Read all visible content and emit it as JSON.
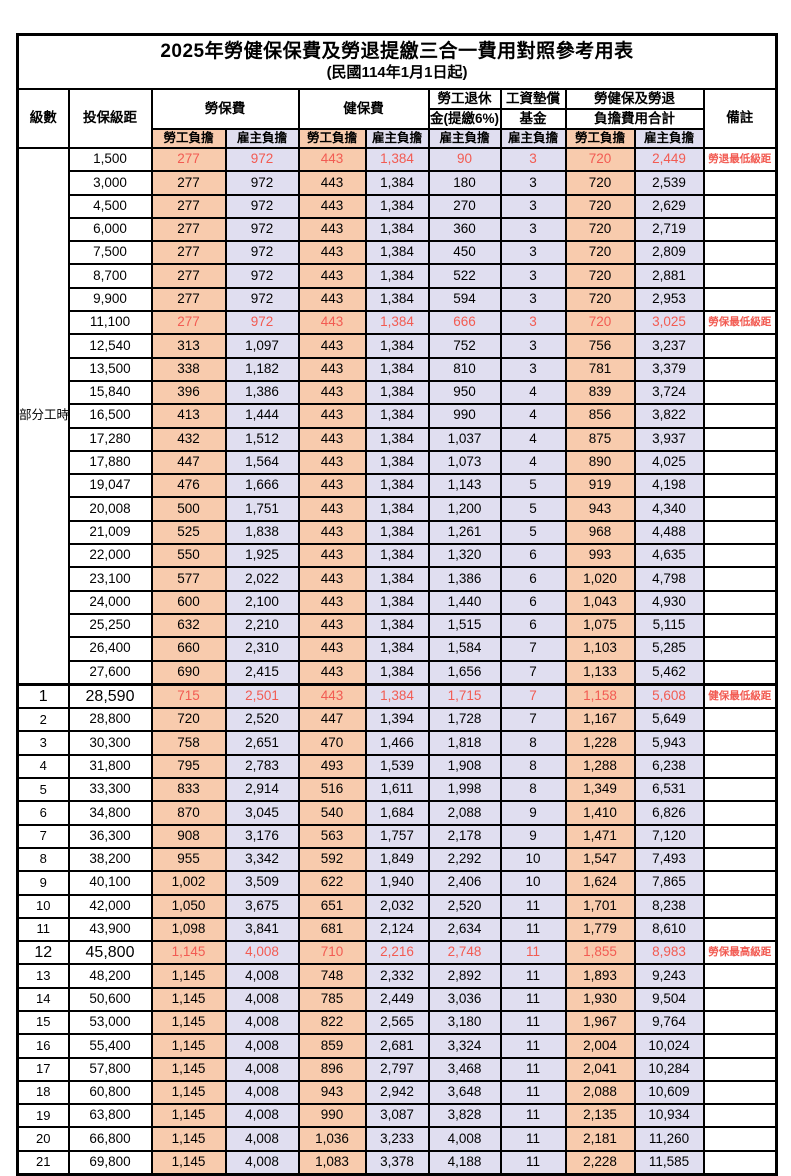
{
  "table": {
    "title": "2025年勞健保保費及勞退提繳三合一費用對照參考用表",
    "subtitle": "(民國114年1月1日起)",
    "header": {
      "level": "級數",
      "bracket": "投保級距",
      "labor_fee": "勞保費",
      "health_fee": "健保費",
      "pension_top": "勞工退休",
      "pension_bottom": "金(提繳6%)",
      "wage_fund_top": "工資墊償",
      "wage_fund_bottom": "基金",
      "total_top": "勞健保及勞退",
      "total_bottom": "負擔費用合計",
      "remarks": "備註",
      "employee_share": "勞工負擔",
      "employer_share": "雇主負擔"
    },
    "part_time_label": "部分工時",
    "part_time_rowspan": 23,
    "value_col_types": [
      "emp",
      "er",
      "emp",
      "er",
      "er",
      "er",
      "emp",
      "er"
    ],
    "colors": {
      "employee_bg": "#F8CBAD",
      "employer_bg": "#E0DEF0",
      "highlight_text": "#F25B52",
      "border": "#000000"
    },
    "rows": [
      {
        "level": "",
        "bracket": "1,500",
        "v": [
          "277",
          "972",
          "443",
          "1,384",
          "90",
          "3",
          "720",
          "2,449"
        ],
        "note": "勞退最低級距",
        "red": true
      },
      {
        "level": "",
        "bracket": "3,000",
        "v": [
          "277",
          "972",
          "443",
          "1,384",
          "180",
          "3",
          "720",
          "2,539"
        ],
        "note": ""
      },
      {
        "level": "",
        "bracket": "4,500",
        "v": [
          "277",
          "972",
          "443",
          "1,384",
          "270",
          "3",
          "720",
          "2,629"
        ],
        "note": ""
      },
      {
        "level": "",
        "bracket": "6,000",
        "v": [
          "277",
          "972",
          "443",
          "1,384",
          "360",
          "3",
          "720",
          "2,719"
        ],
        "note": ""
      },
      {
        "level": "",
        "bracket": "7,500",
        "v": [
          "277",
          "972",
          "443",
          "1,384",
          "450",
          "3",
          "720",
          "2,809"
        ],
        "note": ""
      },
      {
        "level": "",
        "bracket": "8,700",
        "v": [
          "277",
          "972",
          "443",
          "1,384",
          "522",
          "3",
          "720",
          "2,881"
        ],
        "note": ""
      },
      {
        "level": "",
        "bracket": "9,900",
        "v": [
          "277",
          "972",
          "443",
          "1,384",
          "594",
          "3",
          "720",
          "2,953"
        ],
        "note": ""
      },
      {
        "level": "",
        "bracket": "11,100",
        "v": [
          "277",
          "972",
          "443",
          "1,384",
          "666",
          "3",
          "720",
          "3,025"
        ],
        "note": "勞保最低級距",
        "red": true
      },
      {
        "level": "",
        "bracket": "12,540",
        "v": [
          "313",
          "1,097",
          "443",
          "1,384",
          "752",
          "3",
          "756",
          "3,237"
        ],
        "note": ""
      },
      {
        "level": "",
        "bracket": "13,500",
        "v": [
          "338",
          "1,182",
          "443",
          "1,384",
          "810",
          "3",
          "781",
          "3,379"
        ],
        "note": ""
      },
      {
        "level": "",
        "bracket": "15,840",
        "v": [
          "396",
          "1,386",
          "443",
          "1,384",
          "950",
          "4",
          "839",
          "3,724"
        ],
        "note": ""
      },
      {
        "level": "",
        "bracket": "16,500",
        "v": [
          "413",
          "1,444",
          "443",
          "1,384",
          "990",
          "4",
          "856",
          "3,822"
        ],
        "note": ""
      },
      {
        "level": "",
        "bracket": "17,280",
        "v": [
          "432",
          "1,512",
          "443",
          "1,384",
          "1,037",
          "4",
          "875",
          "3,937"
        ],
        "note": ""
      },
      {
        "level": "",
        "bracket": "17,880",
        "v": [
          "447",
          "1,564",
          "443",
          "1,384",
          "1,073",
          "4",
          "890",
          "4,025"
        ],
        "note": ""
      },
      {
        "level": "",
        "bracket": "19,047",
        "v": [
          "476",
          "1,666",
          "443",
          "1,384",
          "1,143",
          "5",
          "919",
          "4,198"
        ],
        "note": ""
      },
      {
        "level": "",
        "bracket": "20,008",
        "v": [
          "500",
          "1,751",
          "443",
          "1,384",
          "1,200",
          "5",
          "943",
          "4,340"
        ],
        "note": ""
      },
      {
        "level": "",
        "bracket": "21,009",
        "v": [
          "525",
          "1,838",
          "443",
          "1,384",
          "1,261",
          "5",
          "968",
          "4,488"
        ],
        "note": ""
      },
      {
        "level": "",
        "bracket": "22,000",
        "v": [
          "550",
          "1,925",
          "443",
          "1,384",
          "1,320",
          "6",
          "993",
          "4,635"
        ],
        "note": ""
      },
      {
        "level": "",
        "bracket": "23,100",
        "v": [
          "577",
          "2,022",
          "443",
          "1,384",
          "1,386",
          "6",
          "1,020",
          "4,798"
        ],
        "note": ""
      },
      {
        "level": "",
        "bracket": "24,000",
        "v": [
          "600",
          "2,100",
          "443",
          "1,384",
          "1,440",
          "6",
          "1,043",
          "4,930"
        ],
        "note": ""
      },
      {
        "level": "",
        "bracket": "25,250",
        "v": [
          "632",
          "2,210",
          "443",
          "1,384",
          "1,515",
          "6",
          "1,075",
          "5,115"
        ],
        "note": ""
      },
      {
        "level": "",
        "bracket": "26,400",
        "v": [
          "660",
          "2,310",
          "443",
          "1,384",
          "1,584",
          "7",
          "1,103",
          "5,285"
        ],
        "note": ""
      },
      {
        "level": "",
        "bracket": "27,600",
        "v": [
          "690",
          "2,415",
          "443",
          "1,384",
          "1,656",
          "7",
          "1,133",
          "5,462"
        ],
        "note": ""
      },
      {
        "level": "1",
        "bracket": "28,590",
        "v": [
          "715",
          "2,501",
          "443",
          "1,384",
          "1,715",
          "7",
          "1,158",
          "5,608"
        ],
        "note": "健保最低級距",
        "red": true,
        "emphasis": true,
        "thick_top": true
      },
      {
        "level": "2",
        "bracket": "28,800",
        "v": [
          "720",
          "2,520",
          "447",
          "1,394",
          "1,728",
          "7",
          "1,167",
          "5,649"
        ],
        "note": ""
      },
      {
        "level": "3",
        "bracket": "30,300",
        "v": [
          "758",
          "2,651",
          "470",
          "1,466",
          "1,818",
          "8",
          "1,228",
          "5,943"
        ],
        "note": ""
      },
      {
        "level": "4",
        "bracket": "31,800",
        "v": [
          "795",
          "2,783",
          "493",
          "1,539",
          "1,908",
          "8",
          "1,288",
          "6,238"
        ],
        "note": ""
      },
      {
        "level": "5",
        "bracket": "33,300",
        "v": [
          "833",
          "2,914",
          "516",
          "1,611",
          "1,998",
          "8",
          "1,349",
          "6,531"
        ],
        "note": ""
      },
      {
        "level": "6",
        "bracket": "34,800",
        "v": [
          "870",
          "3,045",
          "540",
          "1,684",
          "2,088",
          "9",
          "1,410",
          "6,826"
        ],
        "note": ""
      },
      {
        "level": "7",
        "bracket": "36,300",
        "v": [
          "908",
          "3,176",
          "563",
          "1,757",
          "2,178",
          "9",
          "1,471",
          "7,120"
        ],
        "note": ""
      },
      {
        "level": "8",
        "bracket": "38,200",
        "v": [
          "955",
          "3,342",
          "592",
          "1,849",
          "2,292",
          "10",
          "1,547",
          "7,493"
        ],
        "note": ""
      },
      {
        "level": "9",
        "bracket": "40,100",
        "v": [
          "1,002",
          "3,509",
          "622",
          "1,940",
          "2,406",
          "10",
          "1,624",
          "7,865"
        ],
        "note": ""
      },
      {
        "level": "10",
        "bracket": "42,000",
        "v": [
          "1,050",
          "3,675",
          "651",
          "2,032",
          "2,520",
          "11",
          "1,701",
          "8,238"
        ],
        "note": ""
      },
      {
        "level": "11",
        "bracket": "43,900",
        "v": [
          "1,098",
          "3,841",
          "681",
          "2,124",
          "2,634",
          "11",
          "1,779",
          "8,610"
        ],
        "note": ""
      },
      {
        "level": "12",
        "bracket": "45,800",
        "v": [
          "1,145",
          "4,008",
          "710",
          "2,216",
          "2,748",
          "11",
          "1,855",
          "8,983"
        ],
        "note": "勞保最高級距",
        "red": true,
        "emphasis": true
      },
      {
        "level": "13",
        "bracket": "48,200",
        "v": [
          "1,145",
          "4,008",
          "748",
          "2,332",
          "2,892",
          "11",
          "1,893",
          "9,243"
        ],
        "note": ""
      },
      {
        "level": "14",
        "bracket": "50,600",
        "v": [
          "1,145",
          "4,008",
          "785",
          "2,449",
          "3,036",
          "11",
          "1,930",
          "9,504"
        ],
        "note": ""
      },
      {
        "level": "15",
        "bracket": "53,000",
        "v": [
          "1,145",
          "4,008",
          "822",
          "2,565",
          "3,180",
          "11",
          "1,967",
          "9,764"
        ],
        "note": ""
      },
      {
        "level": "16",
        "bracket": "55,400",
        "v": [
          "1,145",
          "4,008",
          "859",
          "2,681",
          "3,324",
          "11",
          "2,004",
          "10,024"
        ],
        "note": ""
      },
      {
        "level": "17",
        "bracket": "57,800",
        "v": [
          "1,145",
          "4,008",
          "896",
          "2,797",
          "3,468",
          "11",
          "2,041",
          "10,284"
        ],
        "note": ""
      },
      {
        "level": "18",
        "bracket": "60,800",
        "v": [
          "1,145",
          "4,008",
          "943",
          "2,942",
          "3,648",
          "11",
          "2,088",
          "10,609"
        ],
        "note": ""
      },
      {
        "level": "19",
        "bracket": "63,800",
        "v": [
          "1,145",
          "4,008",
          "990",
          "3,087",
          "3,828",
          "11",
          "2,135",
          "10,934"
        ],
        "note": ""
      },
      {
        "level": "20",
        "bracket": "66,800",
        "v": [
          "1,145",
          "4,008",
          "1,036",
          "3,233",
          "4,008",
          "11",
          "2,181",
          "11,260"
        ],
        "note": ""
      },
      {
        "level": "21",
        "bracket": "69,800",
        "v": [
          "1,145",
          "4,008",
          "1,083",
          "3,378",
          "4,188",
          "11",
          "2,228",
          "11,585"
        ],
        "note": ""
      }
    ]
  }
}
